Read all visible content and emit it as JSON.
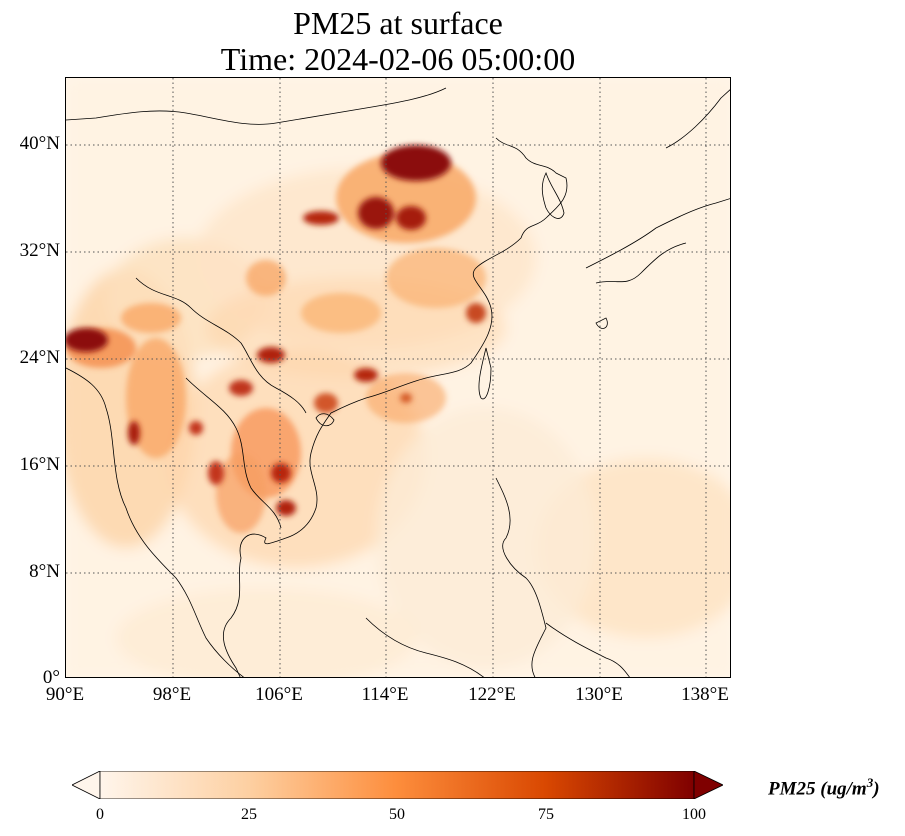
{
  "title": "PM25 at surface",
  "subtitle": "Time: 2024-02-06 05:00:00",
  "x_ticks": [
    "90°E",
    "98°E",
    "106°E",
    "114°E",
    "122°E",
    "130°E",
    "138°E"
  ],
  "y_ticks": [
    "40°N",
    "32°N",
    "24°N",
    "16°N",
    "8°N",
    "0°"
  ],
  "colorbar": {
    "label_main": "PM25 (ug/m",
    "label_sup": "3",
    "label_end": ")",
    "ticks": [
      "0",
      "25",
      "50",
      "75",
      "100"
    ],
    "min": 0,
    "max": 100,
    "extend": "both",
    "colors": [
      "#fff5eb",
      "#fdd0a2",
      "#fd8d3c",
      "#d94801",
      "#7f0000"
    ]
  },
  "map": {
    "extent_lon": [
      90,
      140
    ],
    "extent_lat": [
      0,
      40
    ],
    "gridline_style": "dotted"
  }
}
